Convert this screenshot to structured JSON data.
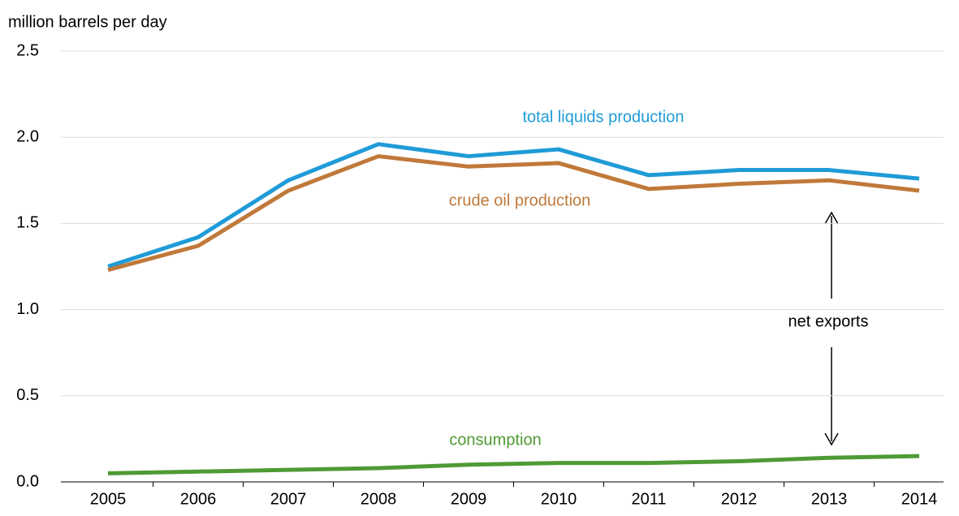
{
  "chart_data": {
    "type": "line",
    "y_axis_label": "million barrels per day",
    "categories": [
      "2005",
      "2006",
      "2007",
      "2008",
      "2009",
      "2010",
      "2011",
      "2012",
      "2013",
      "2014"
    ],
    "series": [
      {
        "name": "total liquids production",
        "color": "#1f9bd7",
        "values": [
          1.25,
          1.42,
          1.75,
          1.96,
          1.89,
          1.93,
          1.78,
          1.81,
          1.81,
          1.76
        ]
      },
      {
        "name": "crude oil production",
        "color": "#c0793a",
        "values": [
          1.23,
          1.37,
          1.69,
          1.89,
          1.83,
          1.85,
          1.7,
          1.73,
          1.75,
          1.69
        ]
      },
      {
        "name": "consumption",
        "color": "#4f9a35",
        "values": [
          0.05,
          0.06,
          0.07,
          0.08,
          0.1,
          0.11,
          0.11,
          0.12,
          0.14,
          0.15
        ]
      }
    ],
    "annotations": [
      "net exports"
    ],
    "ylim": [
      0,
      2.5
    ],
    "yticks": [
      {
        "value": 0,
        "label": "0.0"
      },
      0.5,
      {
        "value": 1,
        "label": "1.0"
      },
      1.5,
      {
        "value": 2,
        "label": "2.0"
      },
      2.5
    ],
    "grid": true
  }
}
